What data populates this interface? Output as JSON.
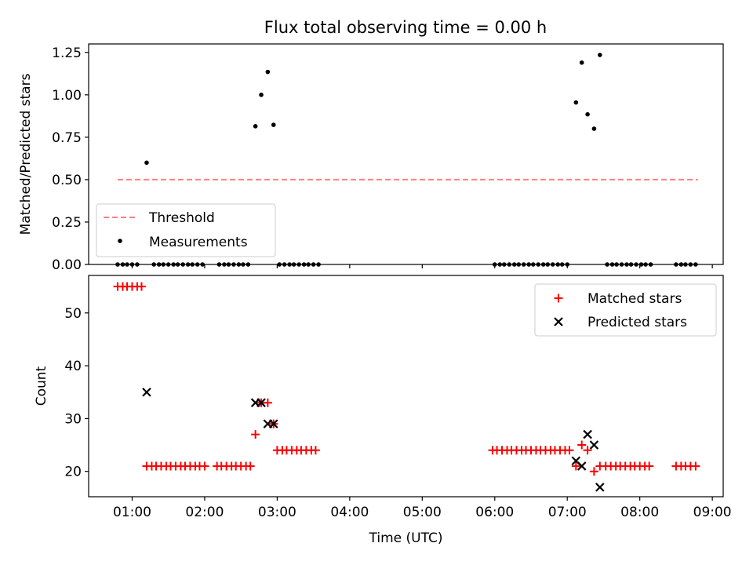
{
  "title": "Flux total observing time = 0.00 h",
  "chart_data": [
    {
      "type": "scatter",
      "ylabel": "Matched/Predicted stars",
      "xlabel": "",
      "xlim": [
        0.4,
        9.15
      ],
      "ylim": [
        0,
        1.3
      ],
      "yticks": [
        0.0,
        0.25,
        0.5,
        0.75,
        1.0,
        1.25
      ],
      "ytick_labels": [
        "0.00",
        "0.25",
        "0.50",
        "0.75",
        "1.00",
        "1.25"
      ],
      "legend": {
        "position": "lower-left"
      },
      "threshold": {
        "name": "Threshold",
        "y": 0.5,
        "x_range": [
          0.8,
          8.8
        ],
        "color": "#ff7f7f"
      },
      "series": [
        {
          "name": "Measurements",
          "color": "#000000",
          "points": [
            [
              0.8,
              0
            ],
            [
              0.87,
              0
            ],
            [
              0.93,
              0
            ],
            [
              1.0,
              0
            ],
            [
              1.07,
              0
            ],
            [
              1.2,
              0.6
            ],
            [
              1.3,
              0
            ],
            [
              1.37,
              0
            ],
            [
              1.43,
              0
            ],
            [
              1.5,
              0
            ],
            [
              1.57,
              0
            ],
            [
              1.63,
              0
            ],
            [
              1.7,
              0
            ],
            [
              1.77,
              0
            ],
            [
              1.83,
              0
            ],
            [
              1.9,
              0
            ],
            [
              1.97,
              0
            ],
            [
              2.2,
              0
            ],
            [
              2.27,
              0
            ],
            [
              2.33,
              0
            ],
            [
              2.4,
              0
            ],
            [
              2.47,
              0
            ],
            [
              2.53,
              0
            ],
            [
              2.6,
              0
            ],
            [
              2.7,
              0.815
            ],
            [
              2.78,
              1.0
            ],
            [
              2.87,
              1.135
            ],
            [
              2.95,
              0.823
            ],
            [
              3.03,
              0
            ],
            [
              3.1,
              0
            ],
            [
              3.17,
              0
            ],
            [
              3.23,
              0
            ],
            [
              3.3,
              0
            ],
            [
              3.37,
              0
            ],
            [
              3.43,
              0
            ],
            [
              3.5,
              0
            ],
            [
              3.57,
              0
            ],
            [
              6.0,
              0
            ],
            [
              6.07,
              0
            ],
            [
              6.13,
              0
            ],
            [
              6.2,
              0
            ],
            [
              6.27,
              0
            ],
            [
              6.33,
              0
            ],
            [
              6.4,
              0
            ],
            [
              6.47,
              0
            ],
            [
              6.53,
              0
            ],
            [
              6.6,
              0
            ],
            [
              6.67,
              0
            ],
            [
              6.73,
              0
            ],
            [
              6.8,
              0
            ],
            [
              6.87,
              0
            ],
            [
              6.93,
              0
            ],
            [
              7.0,
              0
            ],
            [
              7.12,
              0.955
            ],
            [
              7.2,
              1.19
            ],
            [
              7.28,
              0.885
            ],
            [
              7.37,
              0.8
            ],
            [
              7.45,
              1.235
            ],
            [
              7.55,
              0
            ],
            [
              7.62,
              0
            ],
            [
              7.68,
              0
            ],
            [
              7.75,
              0
            ],
            [
              7.82,
              0
            ],
            [
              7.88,
              0
            ],
            [
              7.95,
              0
            ],
            [
              8.02,
              0
            ],
            [
              8.08,
              0
            ],
            [
              8.15,
              0
            ],
            [
              8.5,
              0
            ],
            [
              8.57,
              0
            ],
            [
              8.63,
              0
            ],
            [
              8.7,
              0
            ],
            [
              8.77,
              0
            ]
          ]
        }
      ]
    },
    {
      "type": "scatter",
      "ylabel": "Count",
      "xlabel": "Time (UTC)",
      "xlim": [
        0.4,
        9.15
      ],
      "ylim": [
        15.2,
        57.1
      ],
      "yticks": [
        20,
        30,
        40,
        50
      ],
      "ytick_labels": [
        "20",
        "30",
        "40",
        "50"
      ],
      "xticks": [
        1,
        2,
        3,
        4,
        5,
        6,
        7,
        8,
        9
      ],
      "xtick_labels": [
        "01:00",
        "02:00",
        "03:00",
        "04:00",
        "05:00",
        "06:00",
        "07:00",
        "08:00",
        "09:00"
      ],
      "legend": {
        "position": "top-right"
      },
      "series": [
        {
          "name": "Matched stars",
          "marker": "plus",
          "color": "#ff0000",
          "points": [
            [
              0.8,
              55
            ],
            [
              0.87,
              55
            ],
            [
              0.93,
              55
            ],
            [
              1.0,
              55
            ],
            [
              1.07,
              55
            ],
            [
              1.13,
              55
            ],
            [
              1.2,
              21
            ],
            [
              1.27,
              21
            ],
            [
              1.33,
              21
            ],
            [
              1.4,
              21
            ],
            [
              1.47,
              21
            ],
            [
              1.53,
              21
            ],
            [
              1.6,
              21
            ],
            [
              1.67,
              21
            ],
            [
              1.73,
              21
            ],
            [
              1.8,
              21
            ],
            [
              1.87,
              21
            ],
            [
              1.93,
              21
            ],
            [
              2.0,
              21
            ],
            [
              2.17,
              21
            ],
            [
              2.23,
              21
            ],
            [
              2.3,
              21
            ],
            [
              2.37,
              21
            ],
            [
              2.43,
              21
            ],
            [
              2.5,
              21
            ],
            [
              2.57,
              21
            ],
            [
              2.63,
              21
            ],
            [
              2.7,
              27
            ],
            [
              2.78,
              33
            ],
            [
              2.87,
              33
            ],
            [
              2.95,
              29
            ],
            [
              3.0,
              24
            ],
            [
              3.07,
              24
            ],
            [
              3.13,
              24
            ],
            [
              3.2,
              24
            ],
            [
              3.27,
              24
            ],
            [
              3.33,
              24
            ],
            [
              3.4,
              24
            ],
            [
              3.47,
              24
            ],
            [
              3.53,
              24
            ],
            [
              5.97,
              24
            ],
            [
              6.03,
              24
            ],
            [
              6.1,
              24
            ],
            [
              6.17,
              24
            ],
            [
              6.23,
              24
            ],
            [
              6.3,
              24
            ],
            [
              6.37,
              24
            ],
            [
              6.43,
              24
            ],
            [
              6.5,
              24
            ],
            [
              6.57,
              24
            ],
            [
              6.63,
              24
            ],
            [
              6.7,
              24
            ],
            [
              6.77,
              24
            ],
            [
              6.83,
              24
            ],
            [
              6.9,
              24
            ],
            [
              6.97,
              24
            ],
            [
              7.03,
              24
            ],
            [
              7.12,
              21
            ],
            [
              7.2,
              25
            ],
            [
              7.28,
              24
            ],
            [
              7.37,
              20
            ],
            [
              7.45,
              21
            ],
            [
              7.53,
              21
            ],
            [
              7.6,
              21
            ],
            [
              7.67,
              21
            ],
            [
              7.73,
              21
            ],
            [
              7.8,
              21
            ],
            [
              7.87,
              21
            ],
            [
              7.93,
              21
            ],
            [
              8.0,
              21
            ],
            [
              8.07,
              21
            ],
            [
              8.13,
              21
            ],
            [
              8.5,
              21
            ],
            [
              8.57,
              21
            ],
            [
              8.63,
              21
            ],
            [
              8.7,
              21
            ],
            [
              8.77,
              21
            ]
          ]
        },
        {
          "name": "Predicted stars",
          "marker": "x",
          "color": "#000000",
          "points": [
            [
              1.2,
              35
            ],
            [
              2.7,
              33
            ],
            [
              2.78,
              33
            ],
            [
              2.87,
              29
            ],
            [
              2.95,
              29
            ],
            [
              7.12,
              22
            ],
            [
              7.2,
              21
            ],
            [
              7.28,
              27
            ],
            [
              7.37,
              25
            ],
            [
              7.45,
              17
            ]
          ]
        }
      ]
    }
  ]
}
